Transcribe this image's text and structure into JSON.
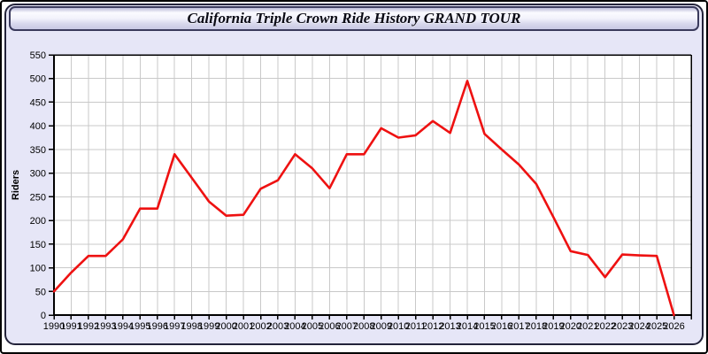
{
  "title": "California Triple Crown Ride History GRAND TOUR",
  "chart_data": {
    "type": "line",
    "title": "California Triple Crown Ride History GRAND TOUR",
    "ylabel": "Riders",
    "xlabel": "",
    "x": [
      1990,
      1991,
      1992,
      1993,
      1994,
      1995,
      1996,
      1997,
      1998,
      1999,
      2000,
      2001,
      2002,
      2003,
      2004,
      2005,
      2006,
      2007,
      2008,
      2009,
      2010,
      2011,
      2012,
      2013,
      2014,
      2015,
      2016,
      2017,
      2018,
      2019,
      2020,
      2021,
      2022,
      2023,
      2024,
      2025,
      2026
    ],
    "values": [
      50,
      90,
      125,
      125,
      160,
      225,
      225,
      340,
      290,
      240,
      210,
      212,
      267,
      285,
      340,
      310,
      268,
      340,
      340,
      395,
      375,
      380,
      410,
      385,
      495,
      383,
      350,
      318,
      277,
      207,
      135,
      127,
      80,
      128,
      126,
      125,
      0
    ],
    "ylim": [
      0,
      550
    ],
    "ytick_step": 50,
    "xlim": [
      1990,
      2027
    ],
    "grid": true,
    "legend_position": "none",
    "line_color": "#ee1111",
    "grid_color": "#c9c9c9",
    "plot_bg": "#ffffff",
    "axis_color": "#000000"
  },
  "colors": {
    "accent_line": "#ee1111",
    "panel_bg": "#e6e6f7",
    "header_border": "#3a3a5c",
    "header_gradient_top": "#b9b9d8",
    "header_gradient_mid": "#fbfbff",
    "header_gradient_bottom": "#c9c9e4"
  }
}
